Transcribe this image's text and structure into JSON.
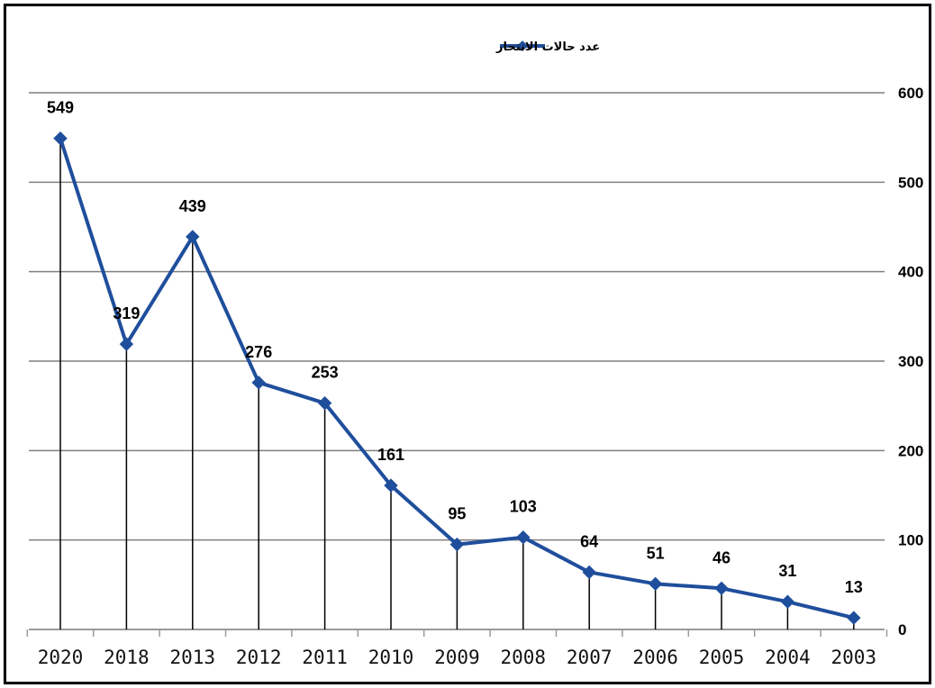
{
  "chart_data": {
    "type": "line",
    "title": "",
    "xlabel": "",
    "ylabel": "",
    "categories": [
      "2020",
      "2018",
      "2013",
      "2012",
      "2011",
      "2010",
      "2009",
      "2008",
      "2007",
      "2006",
      "2005",
      "2004",
      "2003"
    ],
    "series": [
      {
        "name": "عدد حالات الانتحار",
        "values": [
          549,
          319,
          439,
          276,
          253,
          161,
          95,
          103,
          64,
          51,
          46,
          31,
          13
        ]
      }
    ],
    "data_labels": [
      "549",
      "319",
      "439",
      "276",
      "253",
      "161",
      "95",
      "103",
      "64",
      "51",
      "46",
      "31",
      "13"
    ],
    "y_ticks": [
      "0",
      "100",
      "200",
      "300",
      "400",
      "500",
      "600"
    ],
    "ylim": [
      0,
      600
    ],
    "y_axis_side": "right",
    "grid": true,
    "drop_lines": true,
    "legend_position": "top-center",
    "colors": {
      "series": "#1F4E9C",
      "grid": "#7f7f7f",
      "drop_line": "#000000",
      "frame": "#000000"
    }
  }
}
